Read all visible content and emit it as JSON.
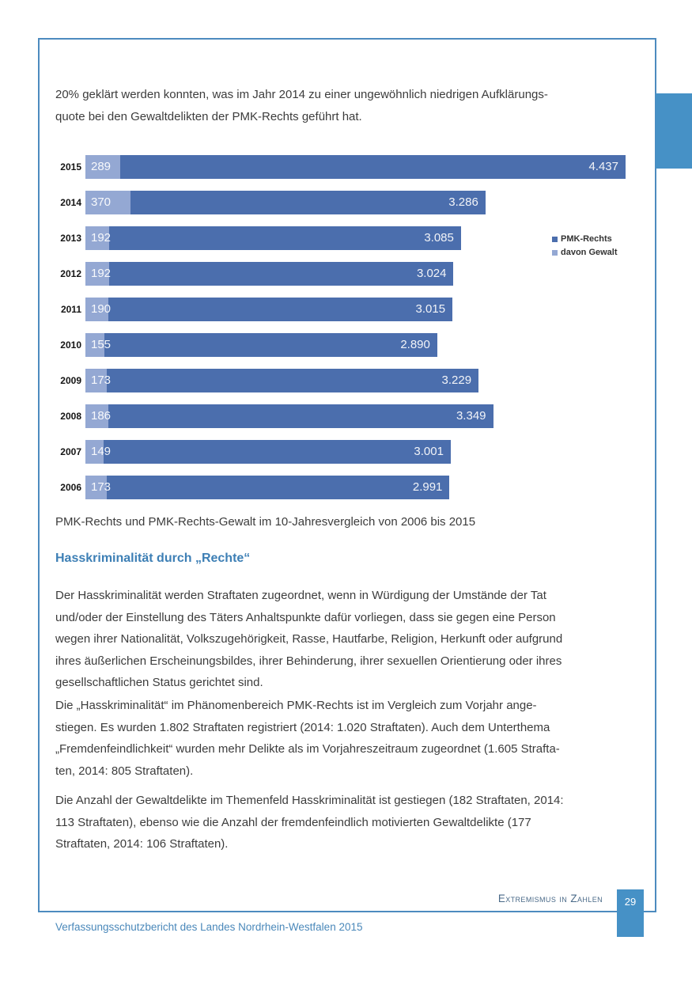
{
  "page": {
    "intro_lines": [
      "20% geklärt werden konnten, was im Jahr 2014 zu einer ungewöhnlich niedrigen Aufklärungs-",
      "quote bei den Gewaltdelikten der PMK-Rechts geführt hat."
    ],
    "caption": "PMK-Rechts und PMK-Rechts-Gewalt im 10-Jahresvergleich von 2006 bis 2015",
    "heading": "Hasskriminalität durch „Rechte“",
    "paragraphs": [
      [
        "Der Hasskriminalität werden Straftaten zugeordnet, wenn in Würdigung der Umstände der Tat",
        "und/oder der Einstellung des Täters Anhaltspunkte dafür vorliegen, dass sie gegen eine Person",
        "wegen ihrer Nationalität, Volkszugehörigkeit, Rasse, Hautfarbe, Religion, Herkunft oder aufgrund",
        "ihres äußerlichen Erscheinungsbildes, ihrer Behinderung, ihrer sexuellen Orientierung oder ihres",
        "gesellschaftlichen Status gerichtet sind."
      ],
      [
        "Die „Hasskriminalität“ im Phänomenbereich PMK-Rechts ist im Vergleich zum Vorjahr ange-",
        "stiegen. Es wurden 1.802 Straftaten registriert (2014: 1.020 Straftaten). Auch dem Unterthema",
        "„Fremdenfeindlichkeit“ wurden mehr Delikte als im Vorjahreszeitraum zugeordnet (1.605 Strafta-",
        "ten, 2014: 805 Straftaten)."
      ],
      [
        "Die Anzahl der Gewaltdelikte im Themenfeld Hasskriminalität ist gestiegen (182 Straftaten, 2014:",
        "113 Straftaten), ebenso wie die Anzahl der fremdenfeindlich motivierten Gewaltdelikte (177",
        "Straftaten, 2014: 106 Straftaten)."
      ]
    ],
    "footer": {
      "section": "Extremismus in Zahlen",
      "page_number": "29",
      "report_title": "Verfassungsschutzbericht des Landes Nordrhein-Westfalen 2015"
    },
    "colors": {
      "frame_border": "#4d8bbf",
      "accent_tab": "#4691c6",
      "heading": "#3d7fb5",
      "footer_text": "#4a6a88",
      "report_title_text": "#4a88ba"
    }
  },
  "chart_data": {
    "type": "bar",
    "orientation": "horizontal",
    "title": "",
    "caption": "PMK-Rechts und PMK-Rechts-Gewalt im 10-Jahresvergleich von 2006 bis 2015",
    "categories": [
      "2015",
      "2014",
      "2013",
      "2012",
      "2011",
      "2010",
      "2009",
      "2008",
      "2007",
      "2006"
    ],
    "series": [
      {
        "name": "PMK-Rechts",
        "color": "#4b6ead",
        "values": [
          4437,
          3286,
          3085,
          3024,
          3015,
          2890,
          3229,
          3349,
          3001,
          2991
        ],
        "labels": [
          "4.437",
          "3.286",
          "3.085",
          "3.024",
          "3.015",
          "2.890",
          "3.229",
          "3.349",
          "3.001",
          "2.991"
        ]
      },
      {
        "name": "davon Gewalt",
        "color": "#94a8d3",
        "values": [
          289,
          370,
          192,
          192,
          190,
          155,
          173,
          186,
          149,
          173
        ],
        "labels": [
          "289",
          "370",
          "192",
          "192",
          "190",
          "155",
          "173",
          "186",
          "149",
          "173"
        ]
      }
    ],
    "xlim": [
      0,
      4437
    ],
    "grid": false,
    "legend_position": "right",
    "value_labels": "inside"
  }
}
